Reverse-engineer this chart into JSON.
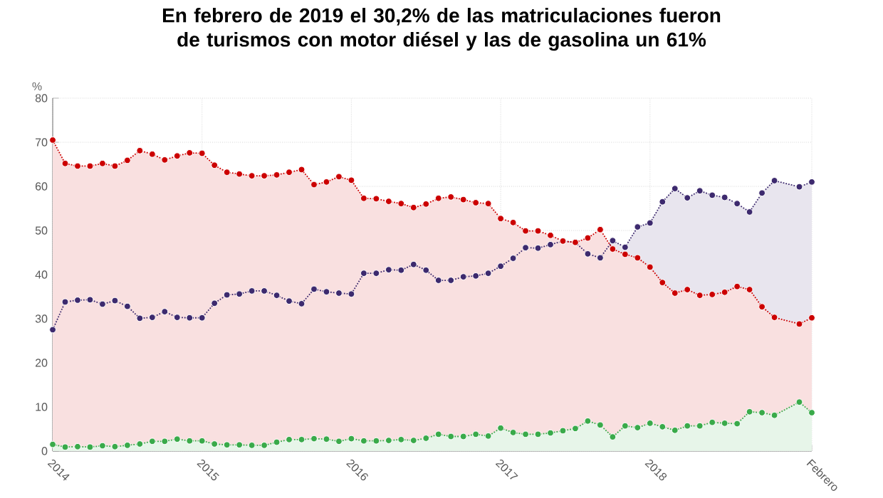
{
  "chart_data": {
    "type": "area",
    "title": "En febrero de 2019 el 30,2% de las matriculaciones fueron de turismos con motor diésel y las de gasolina un 61%",
    "ylabel": "%",
    "x": [
      "2014-01",
      "2014-02",
      "2014-03",
      "2014-04",
      "2014-05",
      "2014-06",
      "2014-07",
      "2014-08",
      "2014-09",
      "2014-10",
      "2014-11",
      "2014-12",
      "2015-01",
      "2015-02",
      "2015-03",
      "2015-04",
      "2015-05",
      "2015-06",
      "2015-07",
      "2015-08",
      "2015-09",
      "2015-10",
      "2015-11",
      "2015-12",
      "2016-01",
      "2016-02",
      "2016-03",
      "2016-04",
      "2016-05",
      "2016-06",
      "2016-07",
      "2016-08",
      "2016-09",
      "2016-10",
      "2016-11",
      "2016-12",
      "2017-01",
      "2017-02",
      "2017-03",
      "2017-04",
      "2017-05",
      "2017-06",
      "2017-07",
      "2017-08",
      "2017-09",
      "2017-10",
      "2017-11",
      "2017-12",
      "2018-01",
      "2018-02",
      "2018-03",
      "2018-04",
      "2018-05",
      "2018-06",
      "2018-07",
      "2018-08",
      "2018-09",
      "2018-10",
      "2018-11",
      "2019-01",
      "2019-02"
    ],
    "series": [
      {
        "color": "#3d2a6e",
        "values": [
          27.5,
          33.8,
          34.2,
          34.3,
          33.3,
          34.1,
          32.8,
          30.1,
          30.3,
          31.6,
          30.3,
          30.2,
          30.2,
          33.5,
          35.4,
          35.6,
          36.3,
          36.3,
          35.3,
          34.0,
          33.4,
          36.7,
          36.1,
          35.8,
          35.6,
          40.3,
          40.3,
          41.1,
          41.0,
          42.3,
          41.0,
          38.7,
          38.7,
          39.5,
          39.7,
          40.3,
          41.9,
          43.7,
          46.1,
          46.0,
          46.8,
          47.6,
          47.3,
          44.7,
          43.8,
          47.7,
          46.2,
          50.8,
          51.7,
          56.5,
          59.5,
          57.4,
          59.0,
          58.0,
          57.5,
          56.1,
          54.2,
          58.5,
          61.3,
          59.9,
          61.0
        ]
      },
      {
        "color": "#cc0000",
        "values": [
          70.5,
          65.2,
          64.6,
          64.6,
          65.2,
          64.6,
          65.9,
          68.1,
          67.3,
          66.0,
          66.9,
          67.6,
          67.5,
          64.8,
          63.2,
          62.8,
          62.4,
          62.4,
          62.6,
          63.2,
          63.8,
          60.4,
          61.0,
          62.2,
          61.4,
          57.3,
          57.2,
          56.6,
          56.1,
          55.2,
          56.0,
          57.3,
          57.6,
          57.0,
          56.3,
          56.1,
          52.7,
          51.8,
          49.9,
          49.9,
          48.9,
          47.6,
          47.3,
          48.3,
          50.2,
          45.8,
          44.6,
          43.8,
          41.7,
          38.2,
          35.8,
          36.6,
          35.3,
          35.5,
          36.0,
          37.3,
          36.6,
          32.7,
          30.3,
          28.8,
          30.2
        ]
      },
      {
        "color": "#3aaa4a",
        "values": [
          1.5,
          0.9,
          1.0,
          0.9,
          1.2,
          1.0,
          1.3,
          1.6,
          2.2,
          2.2,
          2.7,
          2.3,
          2.3,
          1.6,
          1.4,
          1.4,
          1.3,
          1.3,
          2.0,
          2.6,
          2.6,
          2.8,
          2.7,
          2.2,
          2.8,
          2.3,
          2.3,
          2.4,
          2.6,
          2.4,
          2.9,
          3.8,
          3.3,
          3.3,
          3.8,
          3.4,
          5.2,
          4.2,
          3.8,
          3.8,
          4.1,
          4.6,
          5.1,
          6.8,
          5.9,
          3.2,
          5.7,
          5.3,
          6.3,
          5.5,
          4.7,
          5.7,
          5.7,
          6.5,
          6.3,
          6.2,
          8.9,
          8.7,
          8.1,
          11.1,
          8.7
        ]
      }
    ],
    "xlim": [
      "2014-01",
      "2019-02"
    ],
    "xticks": [
      "2014",
      "2015",
      "2016",
      "2017",
      "2018",
      {
        "value": "2019-02",
        "label": "Febrero"
      }
    ],
    "ylim": [
      0,
      80
    ],
    "yticks": [
      0,
      10,
      20,
      30,
      40,
      50,
      60,
      70,
      80
    ],
    "grid": true,
    "marker": "circle",
    "line_style": "dotted"
  }
}
